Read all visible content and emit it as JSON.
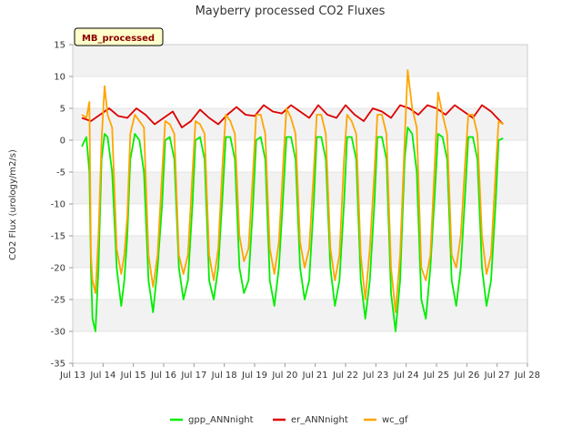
{
  "chart_data": {
    "type": "line",
    "title": "Mayberry processed CO2 Fluxes",
    "ylabel": "CO2 Flux (urology/m2/s)",
    "xlabel": "",
    "badge_label": "MB_processed",
    "ylim": [
      -35,
      15
    ],
    "xlim": [
      13,
      28
    ],
    "y_ticks": [
      15,
      10,
      5,
      0,
      -5,
      -10,
      -15,
      -20,
      -25,
      -30,
      -35
    ],
    "x_ticks": [
      {
        "value": 13,
        "label": "Jul 13"
      },
      {
        "value": 14,
        "label": "Jul 14"
      },
      {
        "value": 15,
        "label": "Jul 15"
      },
      {
        "value": 16,
        "label": "Jul 16"
      },
      {
        "value": 17,
        "label": "Jul 17"
      },
      {
        "value": 18,
        "label": "Jul 18"
      },
      {
        "value": 19,
        "label": "Jul 19"
      },
      {
        "value": 20,
        "label": "Jul 20"
      },
      {
        "value": 21,
        "label": "Jul 21"
      },
      {
        "value": 22,
        "label": "Jul 22"
      },
      {
        "value": 23,
        "label": "Jul 23"
      },
      {
        "value": 24,
        "label": "Jul 24"
      },
      {
        "value": 25,
        "label": "Jul 25"
      },
      {
        "value": 26,
        "label": "Jul 26"
      },
      {
        "value": 27,
        "label": "Jul 27"
      },
      {
        "value": 28,
        "label": "Jul 28"
      }
    ],
    "series": [
      {
        "name": "gpp_ANNnight",
        "color": "#00ee00",
        "x": [
          13.3,
          13.45,
          13.55,
          13.6,
          13.65,
          13.75,
          13.85,
          13.95,
          14.05,
          14.15,
          14.3,
          14.45,
          14.6,
          14.7,
          14.8,
          14.9,
          15.05,
          15.2,
          15.35,
          15.5,
          15.65,
          15.8,
          15.95,
          16.05,
          16.2,
          16.35,
          16.5,
          16.65,
          16.8,
          16.95,
          17.05,
          17.2,
          17.35,
          17.5,
          17.65,
          17.8,
          17.95,
          18.05,
          18.2,
          18.35,
          18.5,
          18.65,
          18.8,
          18.95,
          19.05,
          19.2,
          19.35,
          19.5,
          19.65,
          19.8,
          19.95,
          20.05,
          20.2,
          20.35,
          20.5,
          20.65,
          20.8,
          20.95,
          21.05,
          21.2,
          21.35,
          21.5,
          21.65,
          21.8,
          21.95,
          22.05,
          22.2,
          22.35,
          22.5,
          22.65,
          22.8,
          22.95,
          23.05,
          23.2,
          23.35,
          23.5,
          23.65,
          23.8,
          23.95,
          24.05,
          24.2,
          24.35,
          24.5,
          24.65,
          24.8,
          24.95,
          25.05,
          25.2,
          25.35,
          25.5,
          25.65,
          25.8,
          25.95,
          26.05,
          26.2,
          26.35,
          26.5,
          26.65,
          26.8,
          26.95,
          27.05,
          27.2
        ],
        "y": [
          -1,
          0.5,
          -5,
          -20,
          -28,
          -30,
          -20,
          -3,
          1,
          0.5,
          -5,
          -20,
          -26,
          -22,
          -15,
          -3,
          1,
          0,
          -5,
          -22,
          -27,
          -20,
          -10,
          0,
          0.5,
          -3,
          -20,
          -25,
          -22,
          -10,
          0,
          0.5,
          -3,
          -22,
          -25,
          -20,
          -8,
          0.5,
          0.5,
          -3,
          -20,
          -24,
          -22,
          -10,
          0,
          0.5,
          -3,
          -22,
          -26,
          -20,
          -8,
          0.5,
          0.5,
          -3,
          -20,
          -25,
          -22,
          -10,
          0.5,
          0.5,
          -3,
          -20,
          -26,
          -22,
          -10,
          0.5,
          0.5,
          -3,
          -22,
          -28,
          -22,
          -10,
          0.5,
          0.5,
          -3,
          -24,
          -30,
          -22,
          -3,
          2,
          1,
          -5,
          -25,
          -28,
          -20,
          -8,
          1,
          0.5,
          -3,
          -22,
          -26,
          -20,
          -8,
          0.5,
          0.5,
          -3,
          -20,
          -26,
          -22,
          -10,
          0,
          0.3
        ]
      },
      {
        "name": "er_ANNnight",
        "color": "#dd0000",
        "x": [
          13.3,
          13.6,
          13.9,
          14.2,
          14.5,
          14.8,
          15.1,
          15.4,
          15.7,
          16.0,
          16.3,
          16.6,
          16.9,
          17.2,
          17.5,
          17.8,
          18.1,
          18.4,
          18.7,
          19.0,
          19.3,
          19.6,
          19.9,
          20.2,
          20.5,
          20.8,
          21.1,
          21.4,
          21.7,
          22.0,
          22.3,
          22.6,
          22.9,
          23.2,
          23.5,
          23.8,
          24.1,
          24.4,
          24.7,
          25.0,
          25.3,
          25.6,
          25.9,
          26.2,
          26.5,
          26.8,
          27.1,
          27.2
        ],
        "y": [
          3.5,
          3,
          4,
          5,
          3.8,
          3.5,
          5,
          4,
          2.5,
          3.5,
          4.5,
          2,
          3,
          4.8,
          3.5,
          2.5,
          4,
          5.2,
          4,
          3.8,
          5.5,
          4.5,
          4.2,
          5.5,
          4.5,
          3.5,
          5.5,
          4,
          3.5,
          5.5,
          4,
          3,
          5,
          4.5,
          3.5,
          5.5,
          5,
          4,
          5.5,
          5,
          4,
          5.5,
          4.5,
          3.5,
          5.5,
          4.5,
          3,
          2.5
        ]
      },
      {
        "name": "wc_gf",
        "color": "#ffa500",
        "x": [
          13.3,
          13.45,
          13.55,
          13.6,
          13.65,
          13.75,
          13.85,
          13.95,
          14.05,
          14.15,
          14.3,
          14.45,
          14.6,
          14.7,
          14.8,
          14.9,
          15.05,
          15.2,
          15.35,
          15.5,
          15.65,
          15.8,
          15.95,
          16.05,
          16.2,
          16.35,
          16.5,
          16.65,
          16.8,
          16.95,
          17.05,
          17.2,
          17.35,
          17.5,
          17.65,
          17.8,
          17.95,
          18.05,
          18.2,
          18.35,
          18.5,
          18.65,
          18.8,
          18.95,
          19.05,
          19.2,
          19.35,
          19.5,
          19.65,
          19.8,
          19.95,
          20.05,
          20.2,
          20.35,
          20.5,
          20.65,
          20.8,
          20.95,
          21.05,
          21.2,
          21.35,
          21.5,
          21.65,
          21.8,
          21.95,
          22.05,
          22.2,
          22.35,
          22.5,
          22.65,
          22.8,
          22.95,
          23.05,
          23.2,
          23.35,
          23.5,
          23.65,
          23.8,
          23.95,
          24.05,
          24.2,
          24.35,
          24.5,
          24.65,
          24.8,
          24.95,
          25.05,
          25.2,
          25.35,
          25.5,
          25.65,
          25.8,
          25.95,
          26.05,
          26.2,
          26.35,
          26.5,
          26.65,
          26.8,
          26.95,
          27.05,
          27.2
        ],
        "y": [
          4,
          3.5,
          6,
          -18,
          -22,
          -24,
          -15,
          0,
          8.5,
          4,
          2,
          -17,
          -21,
          -18,
          -12,
          1,
          4,
          3,
          2,
          -18,
          -23,
          -18,
          -5,
          3,
          2.5,
          1,
          -18,
          -21,
          -18,
          -5,
          3,
          2.5,
          1,
          -18,
          -22,
          -17,
          -3,
          4,
          3,
          1,
          -15,
          -19,
          -17,
          -5,
          4,
          4,
          1,
          -17,
          -21,
          -16,
          -3,
          5,
          3.5,
          1,
          -16,
          -20,
          -17,
          -5,
          4,
          4,
          1,
          -17,
          -22,
          -18,
          -3,
          4,
          3,
          1,
          -18,
          -25,
          -17,
          -5,
          4,
          4,
          1,
          -20,
          -27,
          -18,
          0,
          11,
          5,
          2,
          -20,
          -22,
          -18,
          -3,
          7.5,
          4,
          1,
          -18,
          -20,
          -15,
          -3,
          4,
          4,
          1,
          -15,
          -21,
          -18,
          -5,
          3,
          2.5
        ]
      }
    ]
  }
}
